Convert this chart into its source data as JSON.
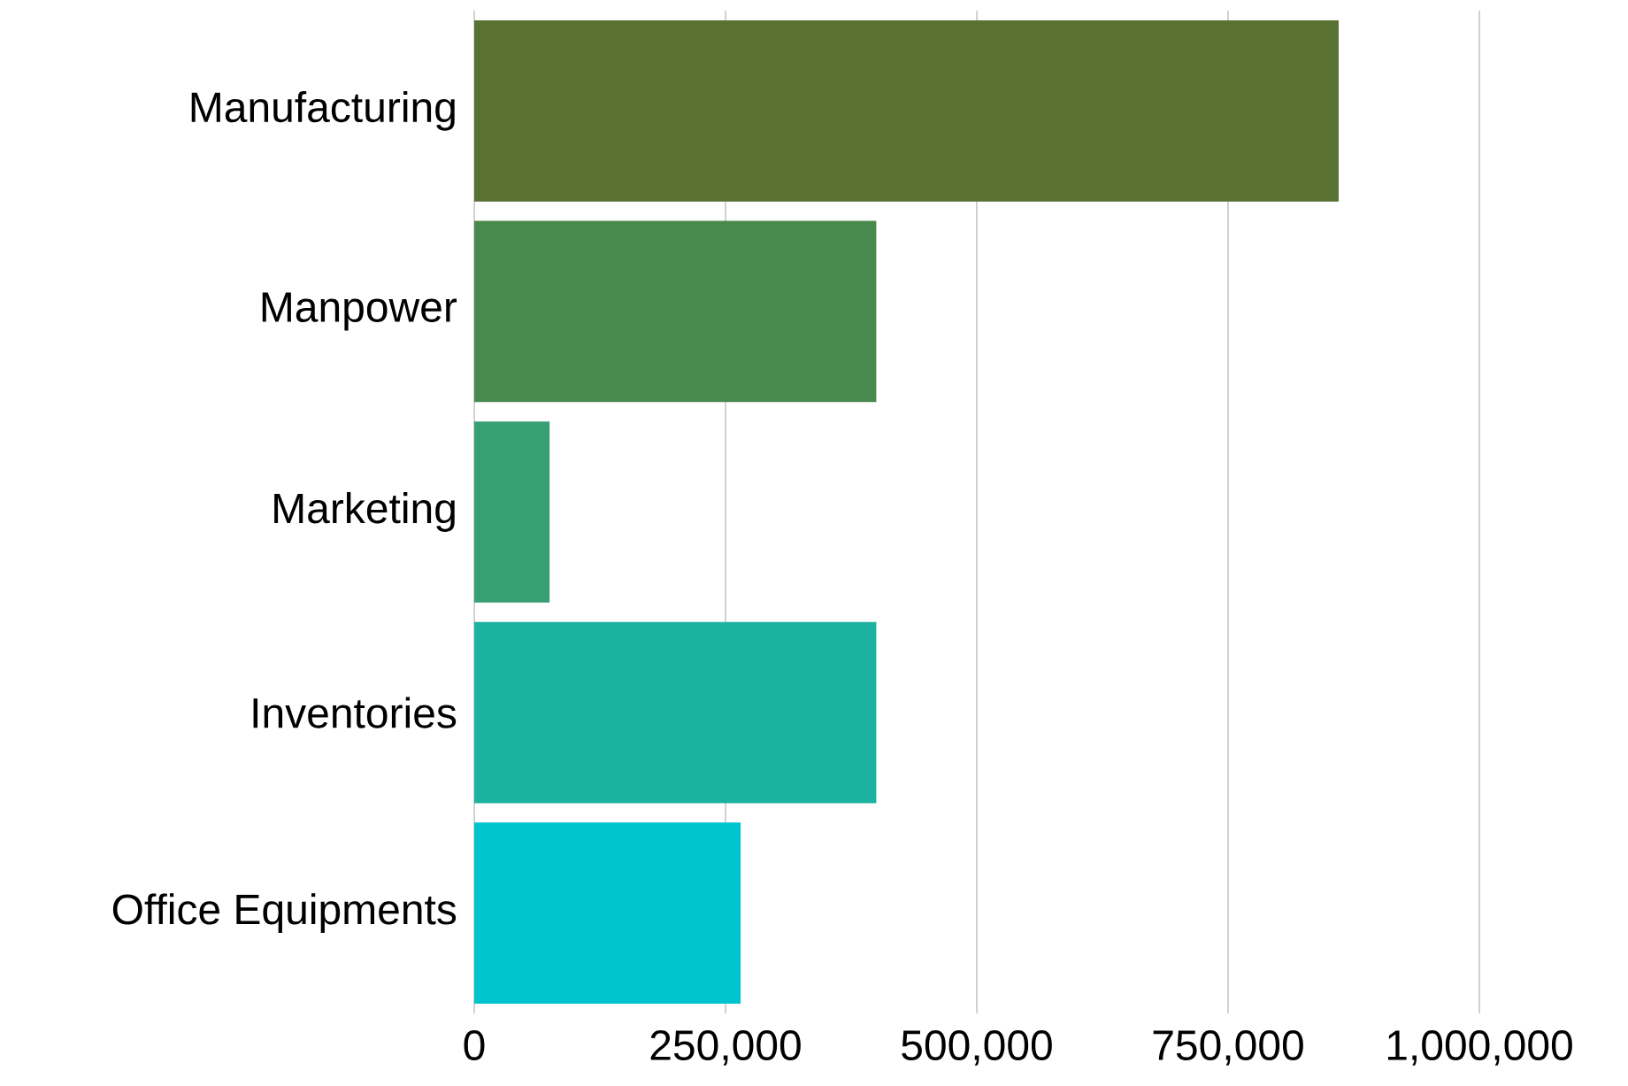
{
  "chart_data": {
    "type": "bar",
    "orientation": "horizontal",
    "categories": [
      "Manufacturing",
      "Manpower",
      "Marketing",
      "Inventories",
      "Office Equipments"
    ],
    "values": [
      860000,
      400000,
      75000,
      400000,
      265000
    ],
    "colors": [
      "#597132",
      "#4a894e",
      "#389f72",
      "#1bb2a0",
      "#00c4cd"
    ],
    "xlim": [
      0,
      1000000
    ],
    "xticks": [
      0,
      {
        "value": 250000,
        "label": "250,000"
      },
      {
        "value": 500000,
        "label": "500,000"
      },
      {
        "value": 750000,
        "label": "750,000"
      },
      {
        "value": 1000000,
        "label": "1,000,000"
      }
    ],
    "grid": "x"
  }
}
